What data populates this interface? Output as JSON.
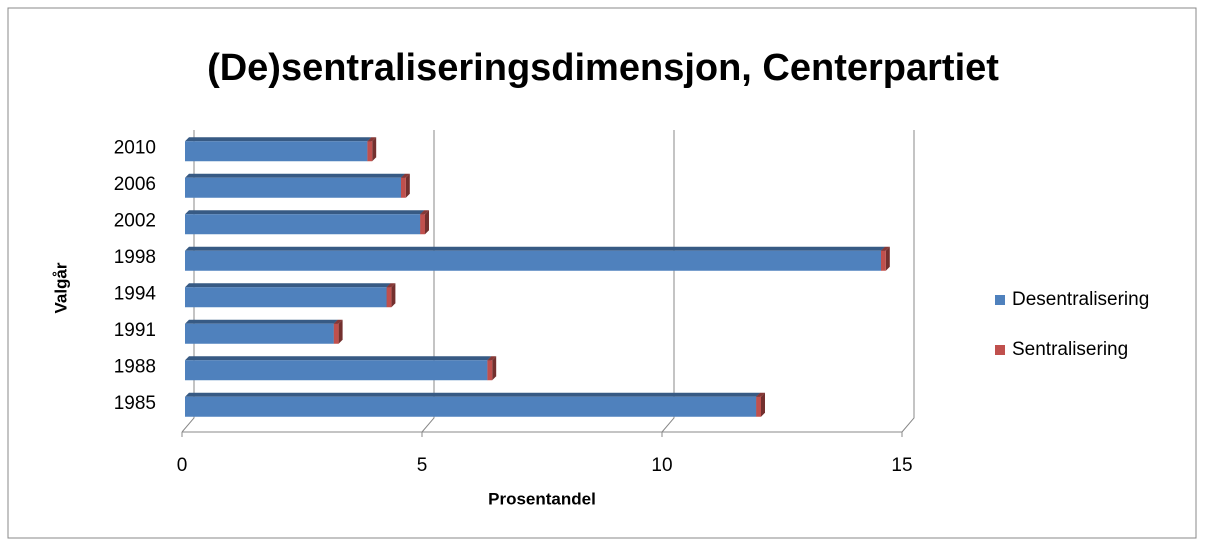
{
  "chart_data": {
    "type": "bar",
    "orientation": "horizontal",
    "stacked": true,
    "title": "(De)sentraliseringsdimensjon, Centerpartiet",
    "x_label": "Prosentandel",
    "y_label": "Valgår",
    "categories": [
      "1985",
      "1988",
      "1991",
      "1994",
      "1998",
      "2002",
      "2006",
      "2010"
    ],
    "series": [
      {
        "name": "Desentralisering",
        "color": "#4f81bd",
        "values": [
          11.9,
          6.3,
          3.1,
          4.2,
          14.5,
          4.9,
          4.5,
          3.8
        ]
      },
      {
        "name": "Sentralisering",
        "color": "#c0504d",
        "values": [
          0.1,
          0.1,
          0.1,
          0.1,
          0.1,
          0.1,
          0.1,
          0.1
        ]
      }
    ],
    "xlim": [
      0,
      15
    ],
    "xticks": [
      0,
      5,
      10,
      15
    ],
    "grid": true,
    "legend": "right"
  }
}
